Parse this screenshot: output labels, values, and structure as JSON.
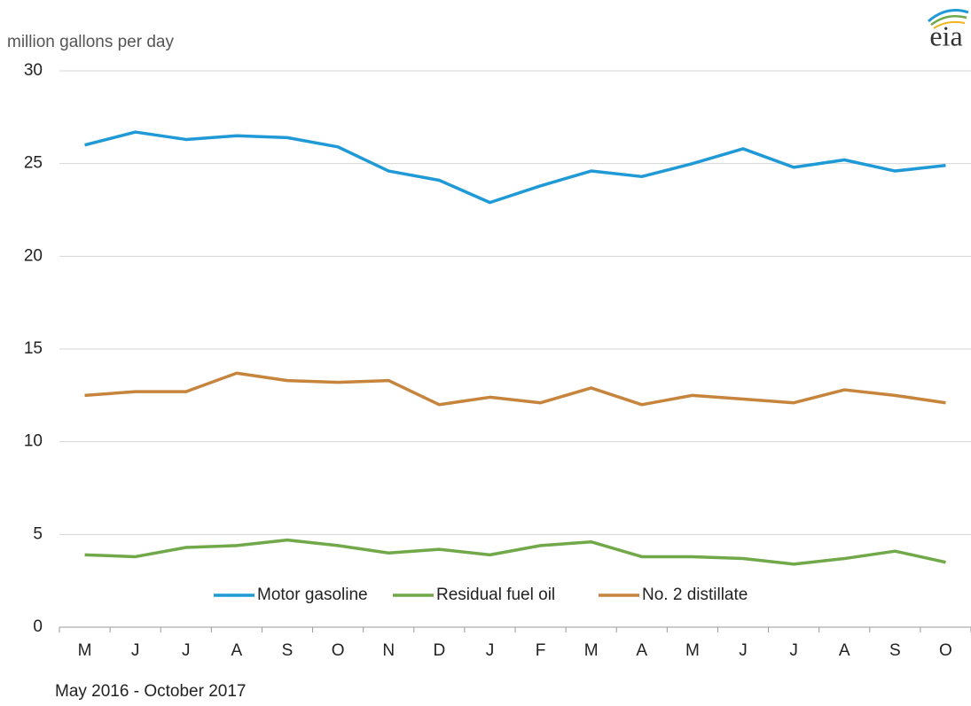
{
  "logo": "eia",
  "chart_data": {
    "type": "line",
    "y_label": "million gallons per day",
    "x_label": "May 2016  -  October 2017",
    "categories": [
      "M",
      "J",
      "J",
      "A",
      "S",
      "O",
      "N",
      "D",
      "J",
      "F",
      "M",
      "A",
      "M",
      "J",
      "J",
      "A",
      "S",
      "O"
    ],
    "series": [
      {
        "name": "Motor gasoline",
        "color": "#1f9ad6",
        "values": [
          26.0,
          26.7,
          26.3,
          26.5,
          26.4,
          25.9,
          24.6,
          24.1,
          22.9,
          23.8,
          24.6,
          24.3,
          25.0,
          25.8,
          24.8,
          25.2,
          24.6,
          24.9
        ]
      },
      {
        "name": "Residual fuel oil",
        "color": "#71a849",
        "values": [
          3.9,
          3.8,
          4.3,
          4.4,
          4.7,
          4.4,
          4.0,
          4.2,
          3.9,
          4.4,
          4.6,
          3.8,
          3.8,
          3.7,
          3.4,
          3.7,
          4.1,
          3.5
        ]
      },
      {
        "name": "No. 2 distillate",
        "color": "#c6843c",
        "values": [
          12.5,
          12.7,
          12.7,
          13.7,
          13.3,
          13.2,
          13.3,
          12.0,
          12.4,
          12.1,
          12.9,
          12.0,
          12.5,
          12.3,
          12.1,
          12.8,
          12.5,
          12.1
        ]
      }
    ],
    "ylim": [
      0,
      30
    ],
    "yticks": [
      0,
      5,
      10,
      15,
      20,
      25,
      30
    ],
    "grid": true,
    "legend": "bottom"
  }
}
